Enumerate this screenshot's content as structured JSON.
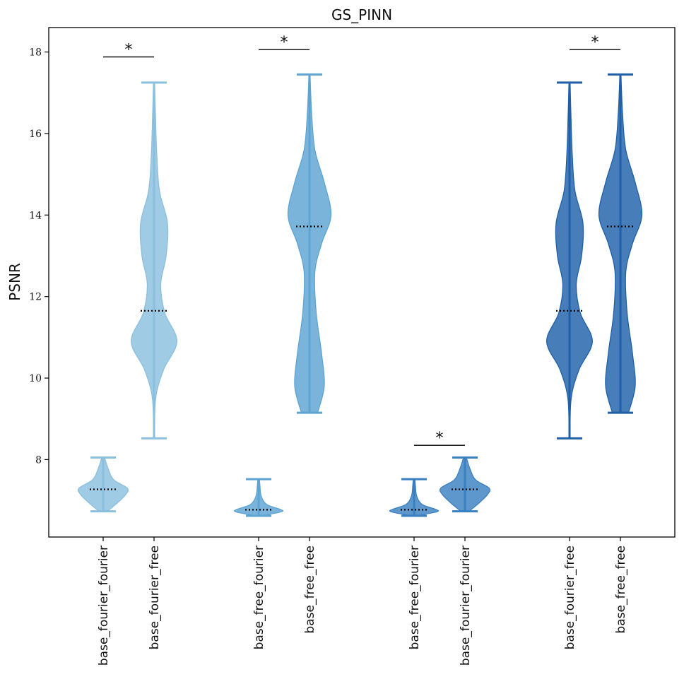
{
  "chart_data": {
    "type": "violin",
    "title": "GS_PINN",
    "xlabel": "",
    "ylabel": "PSNR",
    "ylim": [
      6.1,
      18.6
    ],
    "yticks": [
      8,
      10,
      12,
      14,
      16,
      18
    ],
    "grid": false,
    "colors": {
      "light": "#8bbfde",
      "medium": "#5da4d2",
      "medium_dark": "#3a80c0",
      "dark": "#1f60a8"
    },
    "violins": [
      {
        "label": "base_fourier_fourier",
        "group": 1,
        "color": "light",
        "min": 6.73,
        "max": 8.05,
        "mean": 7.27,
        "profile": [
          [
            6.73,
            0.15
          ],
          [
            6.95,
            0.55
          ],
          [
            7.15,
            0.85
          ],
          [
            7.3,
            0.9
          ],
          [
            7.5,
            0.4
          ],
          [
            7.75,
            0.2
          ],
          [
            8.05,
            0.05
          ]
        ]
      },
      {
        "label": "base_fourier_free",
        "group": 1,
        "color": "light",
        "min": 8.52,
        "max": 17.25,
        "mean": 11.65,
        "profile": [
          [
            8.52,
            0.02
          ],
          [
            9.5,
            0.06
          ],
          [
            10.2,
            0.35
          ],
          [
            10.9,
            0.85
          ],
          [
            11.6,
            0.4
          ],
          [
            12.3,
            0.25
          ],
          [
            13.0,
            0.45
          ],
          [
            13.8,
            0.5
          ],
          [
            14.6,
            0.2
          ],
          [
            15.5,
            0.1
          ],
          [
            16.5,
            0.05
          ],
          [
            17.25,
            0.02
          ]
        ]
      },
      {
        "label": "base_free_fourier",
        "group": 2,
        "color": "medium",
        "min": 6.62,
        "max": 7.52,
        "mean": 6.77,
        "profile": [
          [
            6.62,
            0.1
          ],
          [
            6.72,
            0.85
          ],
          [
            6.78,
            0.8
          ],
          [
            6.9,
            0.3
          ],
          [
            7.1,
            0.1
          ],
          [
            7.35,
            0.05
          ],
          [
            7.52,
            0.03
          ]
        ]
      },
      {
        "label": "base_free_free",
        "group": 2,
        "color": "medium",
        "min": 9.15,
        "max": 17.45,
        "mean": 13.72,
        "profile": [
          [
            9.15,
            0.3
          ],
          [
            9.8,
            0.55
          ],
          [
            10.6,
            0.45
          ],
          [
            11.6,
            0.25
          ],
          [
            12.6,
            0.2
          ],
          [
            13.3,
            0.45
          ],
          [
            14.0,
            0.8
          ],
          [
            14.8,
            0.55
          ],
          [
            15.6,
            0.2
          ],
          [
            16.5,
            0.08
          ],
          [
            17.45,
            0.02
          ]
        ]
      },
      {
        "label": "base_free_fourier",
        "group": 3,
        "color": "medium_dark",
        "min": 6.62,
        "max": 7.52,
        "mean": 6.77,
        "profile": [
          [
            6.62,
            0.1
          ],
          [
            6.72,
            0.85
          ],
          [
            6.78,
            0.8
          ],
          [
            6.9,
            0.3
          ],
          [
            7.1,
            0.1
          ],
          [
            7.35,
            0.05
          ],
          [
            7.52,
            0.03
          ]
        ]
      },
      {
        "label": "base_fourier_fourier",
        "group": 3,
        "color": "medium_dark",
        "min": 6.73,
        "max": 8.05,
        "mean": 7.27,
        "profile": [
          [
            6.73,
            0.15
          ],
          [
            6.95,
            0.55
          ],
          [
            7.15,
            0.85
          ],
          [
            7.3,
            0.9
          ],
          [
            7.5,
            0.4
          ],
          [
            7.75,
            0.2
          ],
          [
            8.05,
            0.05
          ]
        ]
      },
      {
        "label": "base_fourier_free",
        "group": 4,
        "color": "dark",
        "min": 8.52,
        "max": 17.25,
        "mean": 11.65,
        "profile": [
          [
            8.52,
            0.02
          ],
          [
            9.5,
            0.06
          ],
          [
            10.2,
            0.35
          ],
          [
            10.9,
            0.85
          ],
          [
            11.6,
            0.4
          ],
          [
            12.3,
            0.25
          ],
          [
            13.0,
            0.45
          ],
          [
            13.8,
            0.5
          ],
          [
            14.6,
            0.2
          ],
          [
            15.5,
            0.1
          ],
          [
            16.5,
            0.05
          ],
          [
            17.25,
            0.02
          ]
        ]
      },
      {
        "label": "base_free_free",
        "group": 4,
        "color": "dark",
        "min": 9.15,
        "max": 17.45,
        "mean": 13.72,
        "profile": [
          [
            9.15,
            0.3
          ],
          [
            9.8,
            0.55
          ],
          [
            10.6,
            0.45
          ],
          [
            11.6,
            0.25
          ],
          [
            12.6,
            0.2
          ],
          [
            13.3,
            0.45
          ],
          [
            14.0,
            0.8
          ],
          [
            14.8,
            0.55
          ],
          [
            15.6,
            0.2
          ],
          [
            16.5,
            0.08
          ],
          [
            17.45,
            0.02
          ]
        ]
      }
    ],
    "annotations": [
      {
        "text": "*",
        "from": 0,
        "to": 1,
        "y": 17.88
      },
      {
        "text": "*",
        "from": 2,
        "to": 3,
        "y": 18.06
      },
      {
        "text": "*",
        "from": 4,
        "to": 5,
        "y": 8.35
      },
      {
        "text": "*",
        "from": 6,
        "to": 7,
        "y": 18.06
      }
    ]
  }
}
